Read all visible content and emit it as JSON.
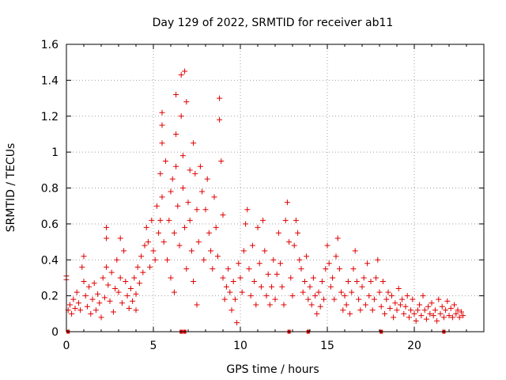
{
  "chart_data": {
    "type": "scatter",
    "title": "Day 129 of 2022, SRMTID for receiver ab11",
    "xlabel": "GPS time / hours",
    "ylabel": "SRMTID / TECUs",
    "xlim": [
      0,
      24
    ],
    "ylim": [
      0,
      1.6
    ],
    "x_ticks": [
      0,
      5,
      10,
      15,
      20
    ],
    "x_tick_labels": [
      "0",
      "5",
      "10",
      "15",
      "20"
    ],
    "y_ticks": [
      0,
      0.2,
      0.4,
      0.6,
      0.8,
      1.0,
      1.2,
      1.4,
      1.6
    ],
    "y_tick_labels": [
      "0",
      "0.2",
      "0.4",
      "0.6",
      "0.8",
      "1",
      "1.2",
      "1.4",
      "1.6"
    ],
    "grid": true,
    "marker": "+",
    "colors": {
      "points": "#e00000",
      "grid": "#a0a0a0",
      "axes": "#000000"
    },
    "series": [
      {
        "name": "SRMTID",
        "points": [
          [
            0.0,
            0.31
          ],
          [
            0.0,
            0.29
          ],
          [
            0.1,
            0.12
          ],
          [
            0.2,
            0.15
          ],
          [
            0.3,
            0.1
          ],
          [
            0.4,
            0.18
          ],
          [
            0.5,
            0.13
          ],
          [
            0.6,
            0.22
          ],
          [
            0.7,
            0.16
          ],
          [
            0.8,
            0.12
          ],
          [
            0.9,
            0.36
          ],
          [
            1.0,
            0.42
          ],
          [
            1.0,
            0.28
          ],
          [
            1.1,
            0.2
          ],
          [
            1.2,
            0.14
          ],
          [
            1.3,
            0.25
          ],
          [
            1.4,
            0.1
          ],
          [
            1.5,
            0.18
          ],
          [
            1.6,
            0.27
          ],
          [
            1.7,
            0.12
          ],
          [
            1.8,
            0.21
          ],
          [
            1.9,
            0.16
          ],
          [
            2.0,
            0.08
          ],
          [
            2.1,
            0.3
          ],
          [
            2.2,
            0.19
          ],
          [
            2.3,
            0.36
          ],
          [
            2.3,
            0.52
          ],
          [
            2.3,
            0.58
          ],
          [
            2.4,
            0.26
          ],
          [
            2.5,
            0.17
          ],
          [
            2.6,
            0.33
          ],
          [
            2.7,
            0.11
          ],
          [
            2.8,
            0.24
          ],
          [
            2.9,
            0.4
          ],
          [
            3.0,
            0.22
          ],
          [
            3.1,
            0.3
          ],
          [
            3.1,
            0.52
          ],
          [
            3.2,
            0.16
          ],
          [
            3.3,
            0.45
          ],
          [
            3.4,
            0.28
          ],
          [
            3.5,
            0.2
          ],
          [
            3.6,
            0.13
          ],
          [
            3.7,
            0.24
          ],
          [
            3.8,
            0.17
          ],
          [
            3.9,
            0.3
          ],
          [
            4.0,
            0.21
          ],
          [
            4.0,
            0.12
          ],
          [
            4.1,
            0.36
          ],
          [
            4.2,
            0.27
          ],
          [
            4.3,
            0.42
          ],
          [
            4.4,
            0.33
          ],
          [
            4.5,
            0.48
          ],
          [
            4.6,
            0.58
          ],
          [
            4.7,
            0.5
          ],
          [
            4.8,
            0.36
          ],
          [
            4.9,
            0.62
          ],
          [
            5.0,
            0.45
          ],
          [
            5.1,
            0.4
          ],
          [
            5.2,
            0.7
          ],
          [
            5.3,
            0.55
          ],
          [
            5.4,
            0.88
          ],
          [
            5.4,
            0.62
          ],
          [
            5.5,
            0.75
          ],
          [
            5.5,
            1.22
          ],
          [
            5.5,
            1.15
          ],
          [
            5.5,
            1.05
          ],
          [
            5.6,
            0.5
          ],
          [
            5.7,
            0.95
          ],
          [
            5.8,
            0.4
          ],
          [
            5.9,
            0.62
          ],
          [
            6.0,
            0.78
          ],
          [
            6.0,
            0.3
          ],
          [
            6.1,
            0.85
          ],
          [
            6.2,
            0.55
          ],
          [
            6.2,
            0.22
          ],
          [
            6.3,
            1.32
          ],
          [
            6.3,
            1.1
          ],
          [
            6.3,
            0.92
          ],
          [
            6.4,
            0.7
          ],
          [
            6.5,
            0.48
          ],
          [
            6.6,
            1.43
          ],
          [
            6.6,
            1.2
          ],
          [
            6.7,
            0.98
          ],
          [
            6.7,
            0.8
          ],
          [
            6.8,
            0.58
          ],
          [
            6.8,
            1.45
          ],
          [
            6.9,
            0.35
          ],
          [
            6.9,
            1.28
          ],
          [
            7.0,
            0.72
          ],
          [
            7.1,
            0.9
          ],
          [
            7.1,
            0.62
          ],
          [
            7.2,
            0.45
          ],
          [
            7.3,
            1.05
          ],
          [
            7.3,
            0.28
          ],
          [
            7.4,
            0.88
          ],
          [
            7.5,
            0.68
          ],
          [
            7.5,
            0.15
          ],
          [
            7.6,
            0.5
          ],
          [
            7.7,
            0.92
          ],
          [
            7.8,
            0.78
          ],
          [
            7.9,
            0.4
          ],
          [
            8.0,
            0.68
          ],
          [
            8.1,
            0.85
          ],
          [
            8.2,
            0.55
          ],
          [
            8.3,
            0.45
          ],
          [
            8.4,
            0.35
          ],
          [
            8.5,
            0.75
          ],
          [
            8.6,
            0.58
          ],
          [
            8.7,
            0.42
          ],
          [
            8.8,
            1.3
          ],
          [
            8.8,
            1.18
          ],
          [
            8.9,
            0.95
          ],
          [
            9.0,
            0.65
          ],
          [
            9.0,
            0.3
          ],
          [
            9.1,
            0.18
          ],
          [
            9.2,
            0.25
          ],
          [
            9.3,
            0.35
          ],
          [
            9.4,
            0.22
          ],
          [
            9.5,
            0.12
          ],
          [
            9.6,
            0.28
          ],
          [
            9.7,
            0.18
          ],
          [
            9.8,
            0.05
          ],
          [
            9.9,
            0.38
          ],
          [
            10.0,
            0.3
          ],
          [
            10.1,
            0.22
          ],
          [
            10.2,
            0.45
          ],
          [
            10.3,
            0.6
          ],
          [
            10.4,
            0.68
          ],
          [
            10.5,
            0.35
          ],
          [
            10.6,
            0.2
          ],
          [
            10.7,
            0.48
          ],
          [
            10.8,
            0.28
          ],
          [
            10.9,
            0.15
          ],
          [
            11.0,
            0.58
          ],
          [
            11.1,
            0.38
          ],
          [
            11.2,
            0.25
          ],
          [
            11.3,
            0.62
          ],
          [
            11.4,
            0.45
          ],
          [
            11.5,
            0.2
          ],
          [
            11.6,
            0.32
          ],
          [
            11.7,
            0.15
          ],
          [
            11.8,
            0.25
          ],
          [
            11.9,
            0.4
          ],
          [
            12.0,
            0.18
          ],
          [
            12.1,
            0.32
          ],
          [
            12.2,
            0.55
          ],
          [
            12.3,
            0.38
          ],
          [
            12.4,
            0.25
          ],
          [
            12.5,
            0.15
          ],
          [
            12.6,
            0.62
          ],
          [
            12.7,
            0.72
          ],
          [
            12.8,
            0.5
          ],
          [
            12.9,
            0.3
          ],
          [
            13.0,
            0.2
          ],
          [
            13.1,
            0.48
          ],
          [
            13.2,
            0.62
          ],
          [
            13.3,
            0.55
          ],
          [
            13.4,
            0.4
          ],
          [
            13.5,
            0.35
          ],
          [
            13.6,
            0.22
          ],
          [
            13.7,
            0.28
          ],
          [
            13.8,
            0.42
          ],
          [
            13.9,
            0.18
          ],
          [
            14.0,
            0.25
          ],
          [
            14.1,
            0.15
          ],
          [
            14.2,
            0.3
          ],
          [
            14.3,
            0.2
          ],
          [
            14.4,
            0.1
          ],
          [
            14.5,
            0.22
          ],
          [
            14.6,
            0.14
          ],
          [
            14.7,
            0.28
          ],
          [
            14.8,
            0.18
          ],
          [
            14.9,
            0.35
          ],
          [
            15.0,
            0.48
          ],
          [
            15.1,
            0.38
          ],
          [
            15.2,
            0.25
          ],
          [
            15.3,
            0.3
          ],
          [
            15.4,
            0.18
          ],
          [
            15.5,
            0.42
          ],
          [
            15.6,
            0.52
          ],
          [
            15.7,
            0.35
          ],
          [
            15.8,
            0.22
          ],
          [
            15.9,
            0.12
          ],
          [
            16.0,
            0.2
          ],
          [
            16.1,
            0.15
          ],
          [
            16.2,
            0.28
          ],
          [
            16.3,
            0.1
          ],
          [
            16.4,
            0.22
          ],
          [
            16.5,
            0.35
          ],
          [
            16.6,
            0.45
          ],
          [
            16.7,
            0.28
          ],
          [
            16.8,
            0.18
          ],
          [
            16.9,
            0.12
          ],
          [
            17.0,
            0.25
          ],
          [
            17.1,
            0.3
          ],
          [
            17.2,
            0.15
          ],
          [
            17.3,
            0.38
          ],
          [
            17.4,
            0.2
          ],
          [
            17.5,
            0.28
          ],
          [
            17.6,
            0.12
          ],
          [
            17.7,
            0.18
          ],
          [
            17.8,
            0.3
          ],
          [
            17.9,
            0.4
          ],
          [
            18.0,
            0.22
          ],
          [
            18.1,
            0.14
          ],
          [
            18.2,
            0.28
          ],
          [
            18.3,
            0.1
          ],
          [
            18.4,
            0.18
          ],
          [
            18.5,
            0.22
          ],
          [
            18.6,
            0.13
          ],
          [
            18.7,
            0.2
          ],
          [
            18.8,
            0.08
          ],
          [
            18.9,
            0.16
          ],
          [
            19.0,
            0.12
          ],
          [
            19.1,
            0.24
          ],
          [
            19.2,
            0.15
          ],
          [
            19.3,
            0.18
          ],
          [
            19.4,
            0.1
          ],
          [
            19.5,
            0.14
          ],
          [
            19.6,
            0.2
          ],
          [
            19.7,
            0.08
          ],
          [
            19.8,
            0.12
          ],
          [
            19.9,
            0.18
          ],
          [
            20.0,
            0.1
          ],
          [
            20.1,
            0.06
          ],
          [
            20.2,
            0.12
          ],
          [
            20.3,
            0.15
          ],
          [
            20.4,
            0.09
          ],
          [
            20.5,
            0.2
          ],
          [
            20.6,
            0.12
          ],
          [
            20.7,
            0.07
          ],
          [
            20.8,
            0.14
          ],
          [
            20.9,
            0.1
          ],
          [
            21.0,
            0.16
          ],
          [
            21.1,
            0.09
          ],
          [
            21.2,
            0.12
          ],
          [
            21.3,
            0.06
          ],
          [
            21.4,
            0.18
          ],
          [
            21.5,
            0.1
          ],
          [
            21.6,
            0.14
          ],
          [
            21.7,
            0.08
          ],
          [
            21.8,
            0.12
          ],
          [
            21.9,
            0.17
          ],
          [
            22.0,
            0.09
          ],
          [
            22.1,
            0.13
          ],
          [
            22.2,
            0.08
          ],
          [
            22.3,
            0.15
          ],
          [
            22.4,
            0.1
          ],
          [
            22.5,
            0.12
          ],
          [
            22.6,
            0.08
          ],
          [
            22.7,
            0.11
          ],
          [
            22.8,
            0.09
          ]
        ]
      }
    ],
    "zero_markers_x": [
      0.1,
      6.6,
      6.8,
      12.8,
      13.9,
      18.1,
      21.7
    ]
  }
}
